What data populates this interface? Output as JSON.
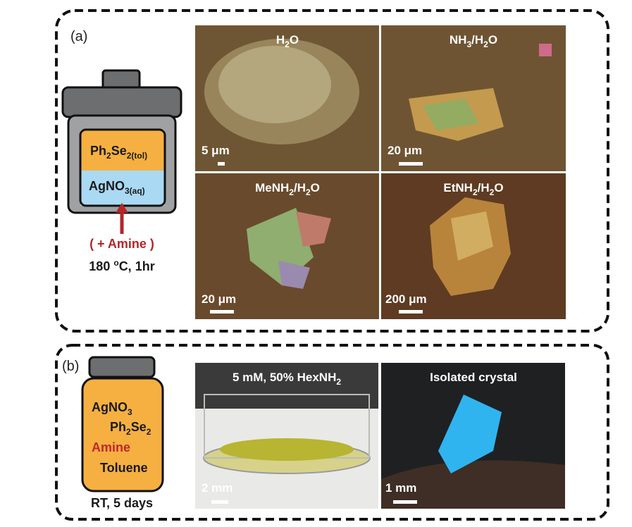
{
  "panel_a": {
    "label": "(a)",
    "reactor": {
      "top_layer": [
        "Ph",
        "2",
        "Se",
        "2(tol)"
      ],
      "bottom_layer": [
        "AgNO",
        "3(aq)"
      ],
      "additive": "( + Amine )",
      "condition": [
        "180 ",
        "o",
        "C, 1hr"
      ]
    },
    "images": [
      {
        "title": [
          "H",
          "2",
          "O"
        ],
        "scale": "5 μm"
      },
      {
        "title": [
          "NH",
          "3",
          "/H",
          "2",
          "O"
        ],
        "scale": "20 μm"
      },
      {
        "title": [
          "MeNH",
          "2",
          "/H",
          "2",
          "O"
        ],
        "scale": "20 μm"
      },
      {
        "title": [
          "EtNH",
          "2",
          "/H",
          "2",
          "O"
        ],
        "scale": "200 μm"
      }
    ]
  },
  "panel_b": {
    "label": "(b)",
    "vial": {
      "reagents": [
        [
          "AgNO",
          "3"
        ],
        [
          "Ph",
          "2",
          "Se",
          "2"
        ],
        [
          "Amine"
        ],
        [
          "Toluene"
        ]
      ],
      "condition": "RT, 5 days"
    },
    "images": [
      {
        "title": [
          "5 mM, 50% HexNH",
          "2"
        ],
        "scale": "2 mm"
      },
      {
        "title": "Isolated crystal",
        "scale": "1 mm"
      }
    ]
  }
}
